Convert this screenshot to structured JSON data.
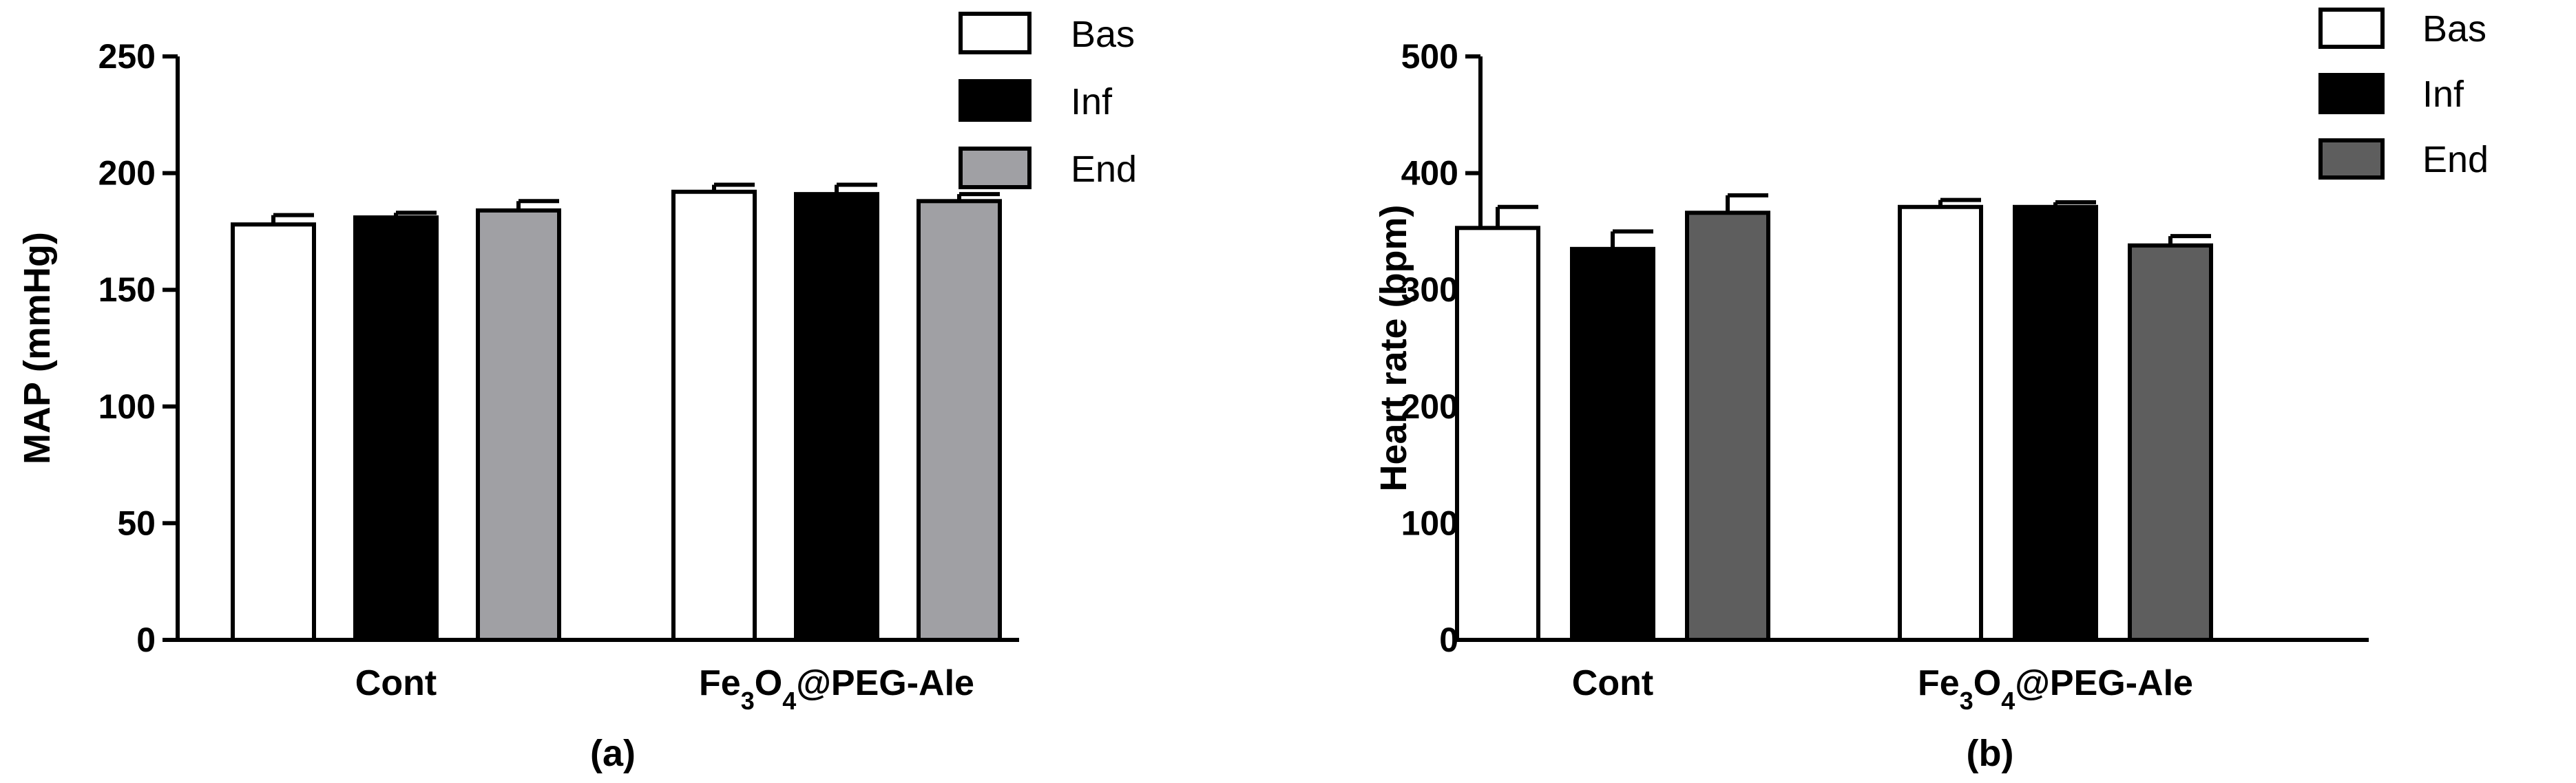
{
  "chart_data": [
    {
      "type": "bar",
      "panel_label": "(a)",
      "ylabel": "MAP (mmHg)",
      "ylim": [
        0,
        250
      ],
      "yticks": [
        0,
        50,
        100,
        150,
        200,
        250
      ],
      "categories": [
        "Cont",
        "Fe3O4@PEG-Ale"
      ],
      "category_labels": [
        {
          "parts": [
            {
              "t": "Cont"
            }
          ]
        },
        {
          "parts": [
            {
              "t": "Fe"
            },
            {
              "t": "3",
              "sub": true
            },
            {
              "t": "O"
            },
            {
              "t": "4",
              "sub": true
            },
            {
              "t": "@PEG-Ale"
            }
          ]
        }
      ],
      "series": [
        {
          "name": "Bas",
          "values": [
            178,
            192
          ],
          "errors": [
            4,
            3
          ],
          "color": "#ffffff"
        },
        {
          "name": "Inf",
          "values": [
            181,
            191
          ],
          "errors": [
            2,
            4
          ],
          "color": "#000000"
        },
        {
          "name": "End",
          "values": [
            184,
            188
          ],
          "errors": [
            4,
            3
          ],
          "color": "#a0a0a4"
        }
      ],
      "legend_position": "top-right"
    },
    {
      "type": "bar",
      "panel_label": "(b)",
      "ylabel": "Heart rate (bpm)",
      "ylim": [
        0,
        500
      ],
      "yticks": [
        0,
        100,
        200,
        300,
        400,
        500
      ],
      "categories": [
        "Cont",
        "Fe3O4@PEG-Ale"
      ],
      "category_labels": [
        {
          "parts": [
            {
              "t": "Cont"
            }
          ]
        },
        {
          "parts": [
            {
              "t": "Fe"
            },
            {
              "t": "3",
              "sub": true
            },
            {
              "t": "O"
            },
            {
              "t": "4",
              "sub": true
            },
            {
              "t": "@PEG-Ale"
            }
          ]
        }
      ],
      "series": [
        {
          "name": "Bas",
          "values": [
            353,
            371
          ],
          "errors": [
            18,
            6
          ],
          "color": "#ffffff"
        },
        {
          "name": "Inf",
          "values": [
            335,
            371
          ],
          "errors": [
            15,
            4
          ],
          "color": "#000000"
        },
        {
          "name": "End",
          "values": [
            366,
            338
          ],
          "errors": [
            15,
            8
          ],
          "color": "#5e5e5e"
        }
      ],
      "legend_position": "top-right"
    }
  ]
}
